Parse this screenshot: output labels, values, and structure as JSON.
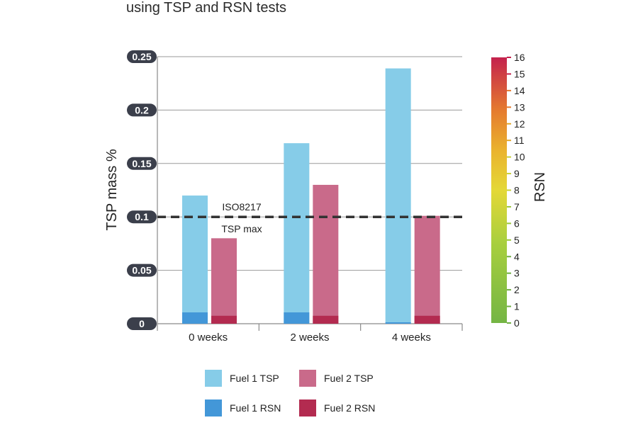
{
  "chart_data": {
    "type": "bar",
    "title": "using TSP and RSN tests",
    "categories": [
      "0 weeks",
      "2 weeks",
      "4 weeks"
    ],
    "ylabel": "TSP mass %",
    "ylim": [
      0,
      0.25
    ],
    "yticks": [
      "0",
      "0.05",
      "0.1",
      "0.15",
      "0.2",
      "0.25"
    ],
    "y2label": "RSN",
    "y2lim": [
      0,
      16
    ],
    "y2ticks": [
      "0",
      "1",
      "2",
      "3",
      "4",
      "5",
      "6",
      "7",
      "8",
      "9",
      "10",
      "11",
      "12",
      "13",
      "14",
      "15",
      "16"
    ],
    "series": [
      {
        "name": "Fuel 1 TSP",
        "axis": "left",
        "values": [
          0.12,
          0.169,
          0.239
        ],
        "color": "#86cce8"
      },
      {
        "name": "Fuel 2 TSP",
        "axis": "left",
        "values": [
          0.08,
          0.13,
          0.101
        ],
        "color": "#c96a8a"
      },
      {
        "name": "Fuel 1 RSN",
        "axis": "right",
        "values": [
          1,
          1,
          0
        ],
        "color": "#4397d8"
      },
      {
        "name": "Fuel 2 RSN",
        "axis": "right",
        "values": [
          0.7,
          0.7,
          0.7
        ],
        "color": "#b32b50"
      }
    ],
    "reference_line": {
      "value": 0.1,
      "label_top": "ISO8217",
      "label_bottom": "TSP max",
      "color": "#333333"
    },
    "grid": true,
    "legend_position": "bottom"
  },
  "legend": [
    {
      "label": "Fuel 1 TSP",
      "color": "#86cce8"
    },
    {
      "label": "Fuel 2 TSP",
      "color": "#c96a8a"
    },
    {
      "label": "Fuel 1 RSN",
      "color": "#4397d8"
    },
    {
      "label": "Fuel 2 RSN",
      "color": "#b32b50"
    }
  ],
  "colors": {
    "tick_badge": "#3b3f4b",
    "axis": "#8a8a8a",
    "grid": "#9a9a9a"
  }
}
